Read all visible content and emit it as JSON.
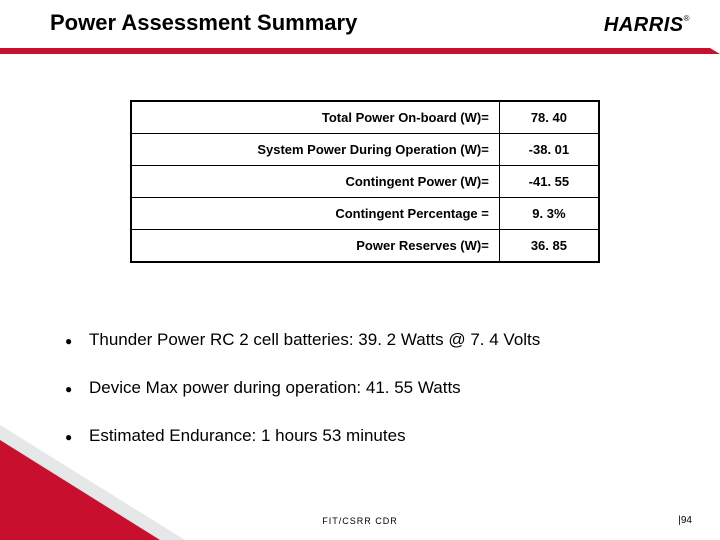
{
  "title": "Power Assessment Summary",
  "logo": {
    "text": "HARRIS",
    "reg": "®"
  },
  "colors": {
    "accent": "#c8102e",
    "grey": "#e6e7e8",
    "text": "#000000",
    "bg": "#ffffff"
  },
  "table": {
    "border_color": "#000000",
    "font_size": 13,
    "rows": [
      {
        "label": "Total Power On-board (W)=",
        "value": "78. 40"
      },
      {
        "label": "System Power During Operation (W)=",
        "value": "-38. 01"
      },
      {
        "label": "Contingent Power (W)=",
        "value": "-41. 55"
      },
      {
        "label": "Contingent Percentage =",
        "value": "9. 3%"
      },
      {
        "label": "Power Reserves (W)=",
        "value": "36. 85"
      }
    ]
  },
  "bullets": [
    "Thunder Power RC 2 cell batteries: 39. 2 Watts @ 7. 4 Volts",
    "Device Max power during operation: 41. 55 Watts",
    "Estimated Endurance: 1 hours 53 minutes"
  ],
  "footer": {
    "center": "FIT/CSRR CDR",
    "right": "|94"
  }
}
